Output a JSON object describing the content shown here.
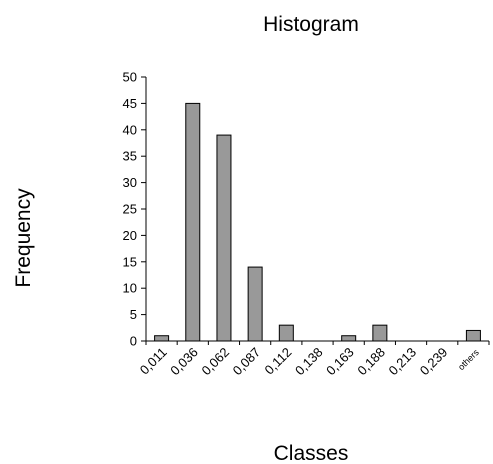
{
  "chart_data": {
    "type": "bar",
    "title": "Histogram",
    "xlabel": "Classes",
    "ylabel": "Frequency",
    "categories": [
      "0,011",
      "0,036",
      "0,062",
      "0,087",
      "0,112",
      "0,138",
      "0,163",
      "0,188",
      "0,213",
      "0,239",
      "others"
    ],
    "values": [
      1,
      45,
      39,
      14,
      3,
      0,
      1,
      3,
      0,
      0,
      2
    ],
    "ylim": [
      0,
      50
    ],
    "yticks": [
      0,
      5,
      10,
      15,
      20,
      25,
      30,
      35,
      40,
      45,
      50
    ],
    "grid": false,
    "legend": "none",
    "bar_color": "#999999",
    "bar_edge_color": "#000000"
  }
}
